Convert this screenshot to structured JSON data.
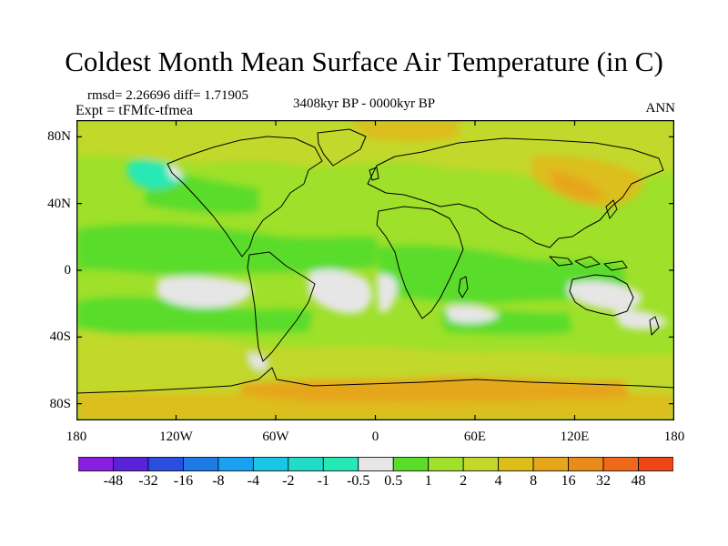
{
  "title": "Coldest Month Mean Surface Air Temperature (in C)",
  "stats": "rmsd= 2.26696 diff= 1.71905",
  "experiment": "Expt = tFMfc-tfmea",
  "period": "3408kyr BP - 0000kyr BP",
  "season": "ANN",
  "map": {
    "lat_ticks": [
      {
        "label": "80N",
        "lat": 80
      },
      {
        "label": "40N",
        "lat": 40
      },
      {
        "label": "0",
        "lat": 0
      },
      {
        "label": "40S",
        "lat": -40
      },
      {
        "label": "80S",
        "lat": -80
      }
    ],
    "lon_ticks": [
      {
        "label": "180",
        "lon": -180
      },
      {
        "label": "120W",
        "lon": -120
      },
      {
        "label": "60W",
        "lon": -60
      },
      {
        "label": "0",
        "lon": 0
      },
      {
        "label": "60E",
        "lon": 60
      },
      {
        "label": "120E",
        "lon": 120
      },
      {
        "label": "180",
        "lon": 180
      }
    ]
  },
  "colorbar": {
    "colors": [
      "#8a1ee0",
      "#5a22d8",
      "#2a4ee0",
      "#1e7ae6",
      "#1aa0f0",
      "#1ac6e6",
      "#22dcc8",
      "#26e8b4",
      "#e6e6e6",
      "#5adc2a",
      "#9ee02a",
      "#c2d82a",
      "#dcbe1a",
      "#e6a61a",
      "#ea8a1a",
      "#ee6a1a",
      "#ee4614"
    ],
    "labels": [
      "-48",
      "-32",
      "-16",
      "-8",
      "-4",
      "-2",
      "-1",
      "-0.5",
      "0.5",
      "1",
      "2",
      "4",
      "8",
      "16",
      "32",
      "48"
    ]
  }
}
